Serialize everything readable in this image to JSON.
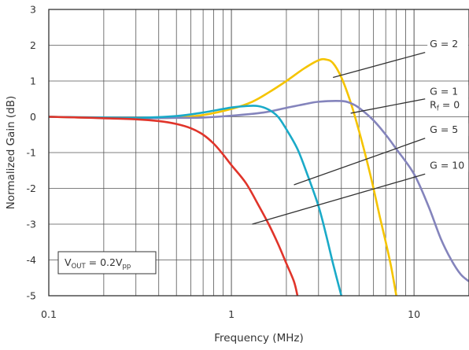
{
  "chart_data": {
    "type": "line",
    "xlabel": "Frequency (MHz)",
    "ylabel": "Normalized Gain (dB)",
    "x_scale": "log",
    "xlim": [
      0.1,
      20
    ],
    "ylim": [
      -5,
      3
    ],
    "grid": true,
    "x_ticks": [
      {
        "value": 0.1,
        "label": "0.1"
      },
      {
        "value": 1,
        "label": "1"
      },
      {
        "value": 10,
        "label": "10"
      }
    ],
    "y_ticks": [
      {
        "value": 3,
        "label": "3"
      },
      {
        "value": 2,
        "label": "2"
      },
      {
        "value": 1,
        "label": "1"
      },
      {
        "value": 0,
        "label": "0"
      },
      {
        "value": -1,
        "label": "-1"
      },
      {
        "value": -2,
        "label": "-2"
      },
      {
        "value": -3,
        "label": "-3"
      },
      {
        "value": -4,
        "label": "-4"
      },
      {
        "value": -5,
        "label": "-5"
      }
    ],
    "condition_box": {
      "main": "V",
      "main_sub": "OUT",
      "mid": " = 0.2V",
      "mid_sub": "pp"
    },
    "series": [
      {
        "label_id": "g2",
        "color": "#f5c400",
        "points": [
          [
            0.1,
            0
          ],
          [
            0.2,
            -0.03
          ],
          [
            0.3,
            -0.04
          ],
          [
            0.5,
            -0.02
          ],
          [
            0.7,
            0.05
          ],
          [
            1.0,
            0.22
          ],
          [
            1.3,
            0.42
          ],
          [
            1.6,
            0.68
          ],
          [
            2.0,
            1.0
          ],
          [
            2.5,
            1.35
          ],
          [
            3.0,
            1.58
          ],
          [
            3.3,
            1.6
          ],
          [
            3.6,
            1.5
          ],
          [
            4.0,
            1.1
          ],
          [
            4.5,
            0.4
          ],
          [
            5.0,
            -0.4
          ],
          [
            5.5,
            -1.2
          ],
          [
            6.0,
            -2.0
          ],
          [
            6.5,
            -2.8
          ],
          [
            7.0,
            -3.5
          ],
          [
            7.5,
            -4.2
          ],
          [
            8.0,
            -5.0
          ]
        ]
      },
      {
        "label_id": "g1",
        "color": "#8484bc",
        "points": [
          [
            0.1,
            0
          ],
          [
            0.2,
            -0.03
          ],
          [
            0.3,
            -0.04
          ],
          [
            0.5,
            -0.03
          ],
          [
            0.7,
            -0.02
          ],
          [
            1.0,
            0.03
          ],
          [
            1.5,
            0.12
          ],
          [
            2.0,
            0.25
          ],
          [
            2.5,
            0.35
          ],
          [
            3.0,
            0.42
          ],
          [
            4.0,
            0.44
          ],
          [
            4.5,
            0.38
          ],
          [
            5.0,
            0.25
          ],
          [
            6.0,
            -0.1
          ],
          [
            7.0,
            -0.5
          ],
          [
            8.0,
            -0.9
          ],
          [
            10.0,
            -1.6
          ],
          [
            12.0,
            -2.5
          ],
          [
            14.0,
            -3.4
          ],
          [
            16.0,
            -4.0
          ],
          [
            18.0,
            -4.4
          ],
          [
            20.0,
            -4.6
          ]
        ]
      },
      {
        "label_id": "g5",
        "color": "#1aaac8",
        "points": [
          [
            0.1,
            0
          ],
          [
            0.2,
            -0.02
          ],
          [
            0.3,
            -0.03
          ],
          [
            0.5,
            0.02
          ],
          [
            0.7,
            0.12
          ],
          [
            1.0,
            0.26
          ],
          [
            1.2,
            0.3
          ],
          [
            1.4,
            0.3
          ],
          [
            1.6,
            0.2
          ],
          [
            1.8,
            0.0
          ],
          [
            2.0,
            -0.35
          ],
          [
            2.3,
            -0.9
          ],
          [
            2.6,
            -1.6
          ],
          [
            3.0,
            -2.5
          ],
          [
            3.3,
            -3.3
          ],
          [
            3.6,
            -4.1
          ],
          [
            4.0,
            -5.0
          ]
        ]
      },
      {
        "label_id": "g10",
        "color": "#e0342a",
        "points": [
          [
            0.1,
            0
          ],
          [
            0.15,
            -0.02
          ],
          [
            0.2,
            -0.04
          ],
          [
            0.3,
            -0.07
          ],
          [
            0.4,
            -0.12
          ],
          [
            0.5,
            -0.2
          ],
          [
            0.6,
            -0.32
          ],
          [
            0.7,
            -0.5
          ],
          [
            0.8,
            -0.75
          ],
          [
            0.9,
            -1.05
          ],
          [
            1.0,
            -1.35
          ],
          [
            1.2,
            -1.85
          ],
          [
            1.4,
            -2.45
          ],
          [
            1.6,
            -3.0
          ],
          [
            1.8,
            -3.55
          ],
          [
            2.0,
            -4.1
          ],
          [
            2.2,
            -4.6
          ],
          [
            2.3,
            -5.0
          ]
        ]
      }
    ],
    "annotations": [
      {
        "id": "g2",
        "text": "G = 2",
        "line_from": [
          3.6,
          1.1
        ],
        "line_to": [
          11.5,
          1.8
        ],
        "text_at": [
          12.2,
          1.95
        ]
      },
      {
        "id": "g1",
        "text": "G = 1",
        "sub_text": "R",
        "sub_sub": "f",
        "sub_rest": " = 0",
        "line_from": [
          4.5,
          0.1
        ],
        "line_to": [
          11.5,
          0.5
        ],
        "text_at": [
          12.2,
          0.62
        ]
      },
      {
        "id": "g5",
        "text": "G = 5",
        "line_from": [
          2.2,
          -1.9
        ],
        "line_to": [
          11.5,
          -0.6
        ],
        "text_at": [
          12.2,
          -0.45
        ]
      },
      {
        "id": "g10",
        "text": "G = 10",
        "line_from": [
          1.3,
          -3.0
        ],
        "line_to": [
          11.5,
          -1.6
        ],
        "text_at": [
          12.2,
          -1.45
        ]
      }
    ]
  }
}
